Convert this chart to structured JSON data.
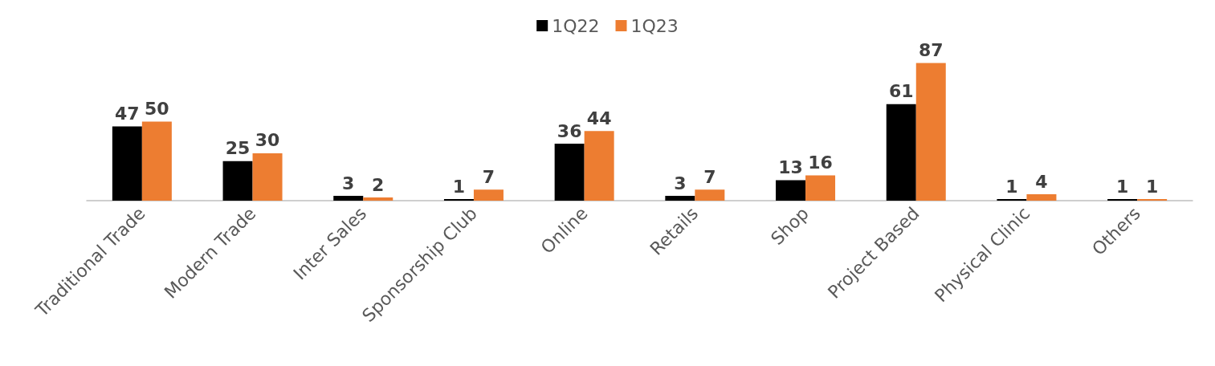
{
  "chart_data": {
    "type": "bar",
    "categories": [
      "Traditional Trade",
      "Modern Trade",
      "Inter Sales",
      "Sponsorship Club",
      "Online",
      "Retails",
      "Shop",
      "Project Based",
      "Physical Clinic",
      "Others"
    ],
    "series": [
      {
        "name": "1Q22",
        "color": "#000000",
        "values": [
          47,
          25,
          3,
          1,
          36,
          3,
          13,
          61,
          1,
          1
        ]
      },
      {
        "name": "1Q23",
        "color": "#ed7d31",
        "values": [
          50,
          30,
          2,
          7,
          44,
          7,
          16,
          87,
          4,
          1
        ]
      }
    ],
    "data_labels": true,
    "legend": "top",
    "grid": false
  }
}
